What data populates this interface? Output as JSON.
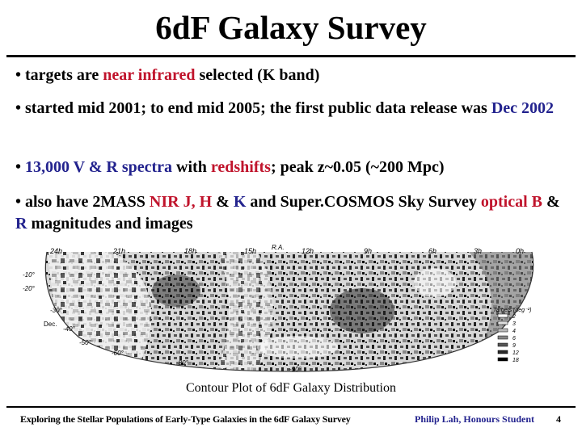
{
  "slide": {
    "title": "6dF Galaxy Survey",
    "bullets": [
      {
        "segments": [
          {
            "text": "•  targets are ",
            "color": "black"
          },
          {
            "text": "near infrared",
            "color": "red"
          },
          {
            "text": " selected (K band)",
            "color": "black"
          }
        ]
      },
      {
        "segments": [
          {
            "text": "• started mid 2001; to end mid 2005; the first public data release was ",
            "color": "black"
          },
          {
            "text": "Dec 2002",
            "color": "blue"
          }
        ]
      },
      {
        "segments": [
          {
            "text": "• ",
            "color": "black"
          },
          {
            "text": "13,000 V & R spectra",
            "color": "blue"
          },
          {
            "text": " with ",
            "color": "black"
          },
          {
            "text": "redshifts",
            "color": "red"
          },
          {
            "text": "; peak z~0.05 (~200 Mpc)",
            "color": "black"
          }
        ]
      },
      {
        "segments": [
          {
            "text": "• also have 2MASS ",
            "color": "black"
          },
          {
            "text": "NIR J, H",
            "color": "red"
          },
          {
            "text": " & ",
            "color": "black"
          },
          {
            "text": "K",
            "color": "blue"
          },
          {
            "text": " and Super.COSMOS Sky Survey ",
            "color": "black"
          },
          {
            "text": "optical B",
            "color": "red"
          },
          {
            "text": " & ",
            "color": "black"
          },
          {
            "text": "R",
            "color": "blue"
          },
          {
            "text": " magnitudes and images",
            "color": "black"
          }
        ]
      }
    ],
    "figure": {
      "ra_header": "R.A.",
      "ra_labels": [
        "24h",
        "21h",
        "18h",
        "15h",
        "12h",
        "9h",
        "6h",
        "3h",
        "0h"
      ],
      "dec_header": "Dec.",
      "dec_labels": [
        "-10°",
        "-20°",
        "-30°",
        "-40°",
        "-50°",
        "-60°",
        "-80°",
        "-90°"
      ],
      "legend_title": "Targets (deg⁻²)",
      "legend_values": [
        "2",
        "3",
        "4",
        "6",
        "9",
        "12",
        "18"
      ],
      "caption": "Contour Plot of 6dF Galaxy Distribution"
    },
    "footer": {
      "talk_title": "Exploring the Stellar Populations of Early-Type Galaxies in the 6dF Galaxy Survey",
      "author": "Philip Lah,  Honours Student",
      "page": "4"
    },
    "colors": {
      "red": "#c0142c",
      "blue": "#23238e",
      "text": "#000000"
    }
  }
}
